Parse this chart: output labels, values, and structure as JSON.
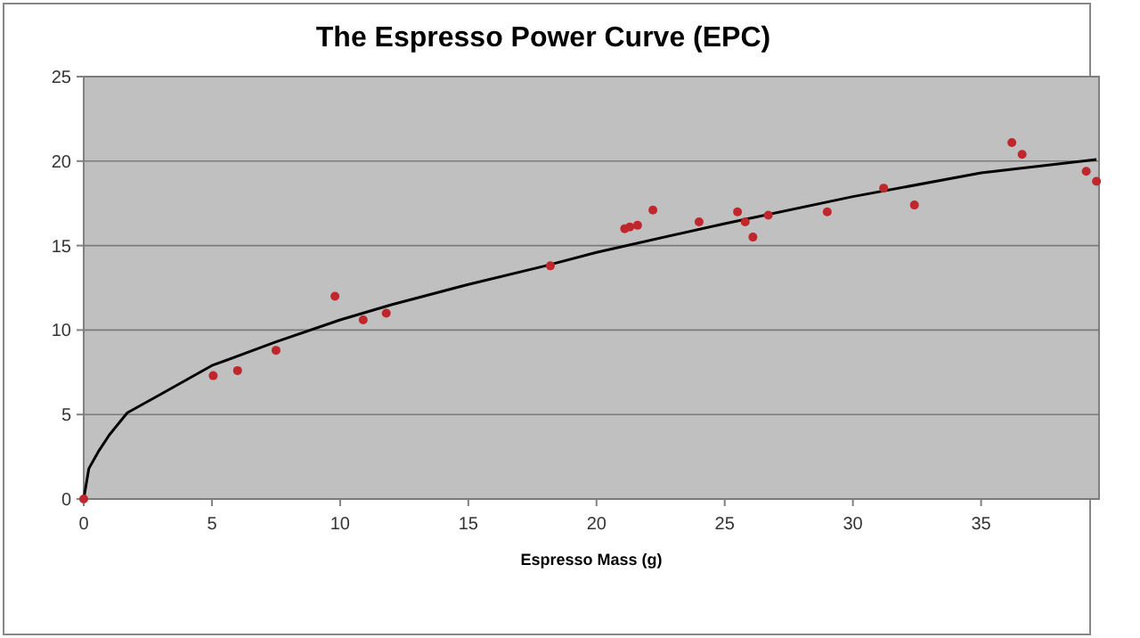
{
  "chart_data": {
    "type": "scatter",
    "title": "The Espresso Power Curve (EPC)",
    "xlabel": "Espresso Mass (g)",
    "xlim": [
      0,
      39.6
    ],
    "xticks": [
      0,
      5,
      10,
      15,
      20,
      25,
      30,
      35
    ],
    "ylim": [
      0,
      25
    ],
    "yticks": [
      0,
      5,
      10,
      15,
      20,
      25
    ],
    "grid": "y",
    "marker": "circle",
    "series": [
      {
        "color": "#c0272d",
        "x": [
          0,
          5.05,
          6.0,
          7.5,
          9.8,
          10.9,
          11.8,
          18.2,
          21.1,
          21.3,
          21.6,
          22.2,
          24.0,
          25.5,
          25.8,
          26.1,
          26.7,
          29.0,
          31.2,
          32.4,
          36.2,
          36.6,
          39.1,
          39.5
        ],
        "values": [
          0,
          7.3,
          7.6,
          8.8,
          12.0,
          10.6,
          11.0,
          13.8,
          16.0,
          16.1,
          16.2,
          17.1,
          16.4,
          17.0,
          16.4,
          15.5,
          16.8,
          17.0,
          18.4,
          17.4,
          21.1,
          20.4,
          19.4,
          18.8
        ]
      },
      {
        "type": "line",
        "color": "#000000",
        "marker": "none",
        "x": [
          0,
          0.2,
          0.57,
          1.0,
          1.7,
          3,
          5,
          7.5,
          10,
          12,
          15,
          18,
          20,
          25,
          30,
          35,
          39.5
        ],
        "values": [
          0,
          1.8,
          2.8,
          3.8,
          5.1,
          6.2,
          7.9,
          9.3,
          10.6,
          11.5,
          12.7,
          13.8,
          14.6,
          16.3,
          17.9,
          19.3,
          20.1
        ]
      }
    ]
  }
}
